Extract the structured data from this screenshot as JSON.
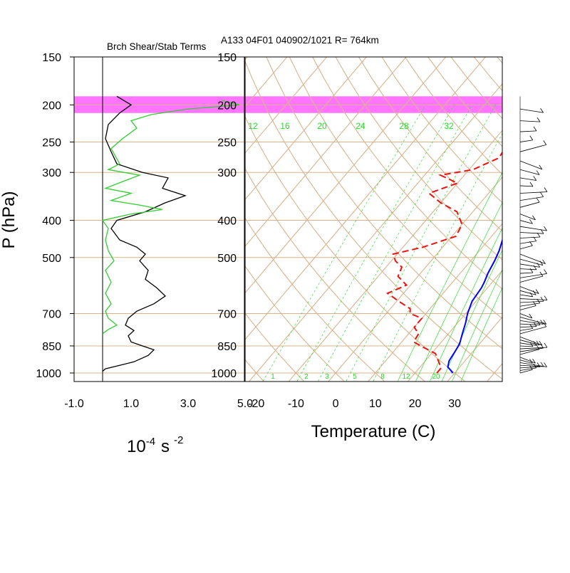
{
  "header": {
    "left_title": "Brch Shear/Stab Terms",
    "right_title": "A133 04F01 040902/1021 R= 764km"
  },
  "left_panel": {
    "xlabel": "10",
    "xlabel_sup": "-4",
    "xlabel_unit": "s",
    "xlabel_unit_sup": "-2"
  },
  "right_panel": {
    "xlabel": "Temperature (C)"
  },
  "y_axis": {
    "label": "P (hPa)"
  },
  "colors": {
    "highlight": "#ff66ff",
    "temperature": "#0000ff",
    "dewpoint": "#ee1111",
    "shear": "#000000",
    "stability": "#33cc33",
    "grid": "#d7b48c",
    "mixing_ratio": "#33dd33"
  },
  "chart_data": [
    {
      "type": "line",
      "title": "Brch Shear/Stab Terms",
      "xlabel": "10^-4 s^-2",
      "ylabel": "P (hPa)",
      "xlim": [
        -1.0,
        5.0
      ],
      "ylim": [
        1000,
        150
      ],
      "y_scale": "log",
      "x_ticks": [
        "-1.0",
        "1.0",
        "3.0",
        "5.0"
      ],
      "y_ticks": [
        150,
        200,
        250,
        300,
        400,
        500,
        700,
        850,
        1000
      ],
      "highlight_band": [
        190,
        210
      ],
      "series": [
        {
          "name": "",
          "color": "#000000",
          "points": [
            [
              0.0,
              990
            ],
            [
              0.1,
              975
            ],
            [
              0.6,
              955
            ],
            [
              1.1,
              935
            ],
            [
              1.6,
              900
            ],
            [
              1.8,
              870
            ],
            [
              1.4,
              850
            ],
            [
              1.0,
              830
            ],
            [
              0.9,
              800
            ],
            [
              1.1,
              775
            ],
            [
              0.8,
              750
            ],
            [
              0.9,
              720
            ],
            [
              1.2,
              690
            ],
            [
              1.8,
              660
            ],
            [
              2.2,
              630
            ],
            [
              1.9,
              600
            ],
            [
              1.5,
              570
            ],
            [
              1.6,
              540
            ],
            [
              1.3,
              510
            ],
            [
              1.5,
              490
            ],
            [
              1.2,
              470
            ],
            [
              0.6,
              450
            ],
            [
              0.3,
              420
            ],
            [
              0.5,
              400
            ],
            [
              1.5,
              380
            ],
            [
              2.2,
              360
            ],
            [
              2.9,
              345
            ],
            [
              2.1,
              330
            ],
            [
              2.3,
              310
            ],
            [
              1.4,
              300
            ],
            [
              0.5,
              285
            ],
            [
              0.3,
              265
            ],
            [
              0.1,
              245
            ],
            [
              0.2,
              225
            ],
            [
              0.6,
              210
            ],
            [
              1.0,
              200
            ],
            [
              0.5,
              190
            ]
          ]
        },
        {
          "name": "",
          "color": "#33cc33",
          "points": [
            [
              0.0,
              790
            ],
            [
              0.2,
              770
            ],
            [
              0.5,
              750
            ],
            [
              0.2,
              720
            ],
            [
              0.1,
              690
            ],
            [
              0.3,
              660
            ],
            [
              0.1,
              620
            ],
            [
              0.3,
              580
            ],
            [
              0.1,
              540
            ],
            [
              0.4,
              510
            ],
            [
              0.2,
              480
            ],
            [
              0.1,
              450
            ],
            [
              0.2,
              420
            ],
            [
              0.0,
              400
            ],
            [
              1.0,
              385
            ],
            [
              2.1,
              375
            ],
            [
              1.3,
              365
            ],
            [
              0.3,
              355
            ],
            [
              1.0,
              340
            ],
            [
              0.1,
              330
            ],
            [
              0.8,
              315
            ],
            [
              1.3,
              305
            ],
            [
              0.2,
              295
            ],
            [
              0.6,
              285
            ],
            [
              0.3,
              260
            ],
            [
              0.7,
              245
            ],
            [
              1.2,
              230
            ],
            [
              1.0,
              220
            ],
            [
              1.7,
              212
            ],
            [
              3.0,
              205
            ],
            [
              4.8,
              200
            ],
            [
              4.2,
              195
            ]
          ]
        }
      ]
    },
    {
      "type": "line",
      "title": "A133 04F01 040902/1021 R= 764km",
      "xlabel": "Temperature (C)",
      "ylabel": "P (hPa)",
      "xlim": [
        -23,
        42
      ],
      "ylim": [
        1000,
        150
      ],
      "y_scale": "log",
      "x_ticks": [
        "-20",
        "-10",
        "0",
        "10",
        "20",
        "30"
      ],
      "y_ticks": [
        150,
        200,
        250,
        300,
        400,
        500,
        700,
        850,
        1000
      ],
      "highlight_band": [
        190,
        210
      ],
      "mixing_ratio_labels_top": [
        "12",
        "16",
        "20",
        "24",
        "28",
        "32"
      ],
      "mixing_ratio_labels_bottom": [
        "1",
        "2",
        "3",
        "5",
        "8",
        "12",
        "20"
      ],
      "series": [
        {
          "name": "",
          "color": "#0000ff",
          "style": "solid",
          "points": [
            [
              29.5,
              1000
            ],
            [
              28.5,
              985
            ],
            [
              27,
              965
            ],
            [
              26,
              930
            ],
            [
              25.5,
              880
            ],
            [
              25,
              840
            ],
            [
              23.5,
              790
            ],
            [
              22,
              740
            ],
            [
              20.5,
              700
            ],
            [
              19,
              650
            ],
            [
              18.5,
              600
            ],
            [
              18,
              580
            ],
            [
              17,
              550
            ],
            [
              16,
              510
            ],
            [
              15,
              480
            ],
            [
              13,
              440
            ],
            [
              12,
              410
            ],
            [
              11.5,
              380
            ],
            [
              11.5,
              350
            ],
            [
              11,
              330
            ],
            [
              10,
              310
            ],
            [
              8,
              290
            ],
            [
              5.5,
              265
            ],
            [
              3,
              245
            ],
            [
              0.5,
              225
            ],
            [
              -1.5,
              205
            ],
            [
              -3.5,
              185
            ]
          ]
        },
        {
          "name": "",
          "color": "#ee1111",
          "style": "dashed",
          "points": [
            [
              25.5,
              1000
            ],
            [
              25.5,
              970
            ],
            [
              23,
              925
            ],
            [
              21,
              890
            ],
            [
              17,
              860
            ],
            [
              13,
              830
            ],
            [
              12.5,
              790
            ],
            [
              10,
              760
            ],
            [
              10,
              720
            ],
            [
              6,
              700
            ],
            [
              5,
              680
            ],
            [
              0.5,
              650
            ],
            [
              -4,
              620
            ],
            [
              -1,
              590
            ],
            [
              -5,
              560
            ],
            [
              -6,
              530
            ],
            [
              -9,
              510
            ],
            [
              -11,
              490
            ],
            [
              -5,
              470
            ],
            [
              1,
              440
            ],
            [
              0,
              410
            ],
            [
              -4,
              380
            ],
            [
              -10,
              360
            ],
            [
              -15,
              340
            ],
            [
              -10,
              320
            ],
            [
              -16,
              305
            ],
            [
              -9,
              295
            ],
            [
              -5,
              275
            ],
            [
              -6,
              245
            ],
            [
              -3,
              225
            ],
            [
              -4,
              210
            ],
            [
              -8,
              200
            ]
          ]
        }
      ]
    }
  ]
}
